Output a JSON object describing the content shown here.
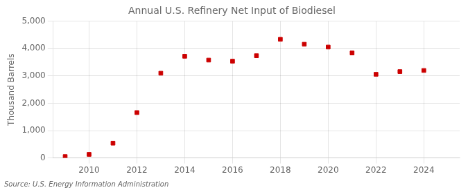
{
  "chart_data": {
    "type": "scatter",
    "title": "Annual U.S. Refinery Net Input of Biodiesel",
    "ylabel": "Thousand Barrels",
    "source": "Source: U.S. Energy Information Administration",
    "x": [
      2009,
      2010,
      2011,
      2012,
      2013,
      2014,
      2015,
      2016,
      2017,
      2018,
      2019,
      2020,
      2021,
      2022,
      2023,
      2024
    ],
    "values": [
      50,
      130,
      540,
      1660,
      3100,
      3720,
      3580,
      3540,
      3740,
      4340,
      4160,
      4060,
      3840,
      3060,
      3160,
      3200
    ],
    "color": "#cc0000",
    "marker": "square",
    "xlim": [
      2008.5,
      2025.5
    ],
    "xticks": [
      2010,
      2012,
      2014,
      2016,
      2018,
      2020,
      2022,
      2024
    ],
    "ylim": [
      0,
      5000
    ],
    "yticks": [
      0,
      {
        "value": 1000,
        "label": "1,000"
      },
      {
        "value": 2000,
        "label": "2,000"
      },
      {
        "value": 3000,
        "label": "3,000"
      },
      {
        "value": 4000,
        "label": "4,000"
      },
      {
        "value": 5000,
        "label": "5,000"
      }
    ],
    "grid": true
  }
}
